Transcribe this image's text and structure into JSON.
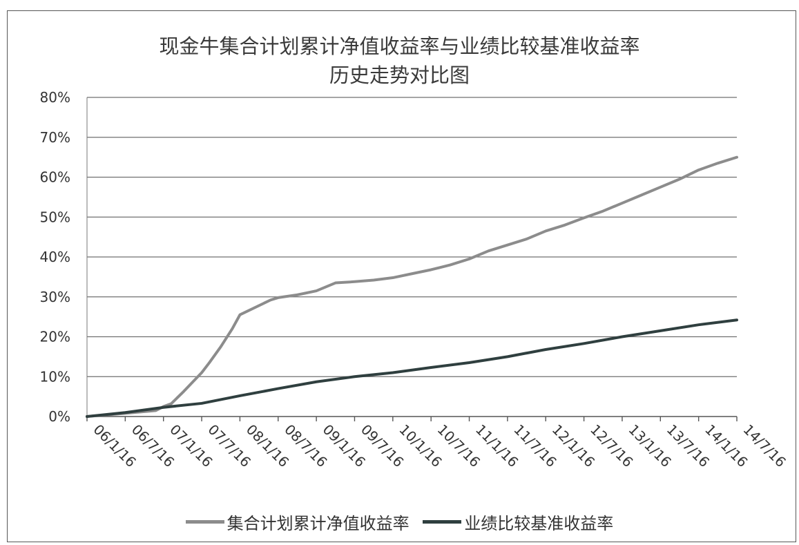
{
  "chart_data": {
    "type": "line",
    "title": "现金牛集合计划累计净值收益率与业绩比较基准收益率",
    "subtitle": "历史走势对比图",
    "xlabel": "",
    "ylabel": "",
    "categories": [
      "06/1/16",
      "06/7/16",
      "07/1/16",
      "07/7/16",
      "08/1/16",
      "08/7/16",
      "09/1/16",
      "09/7/16",
      "10/1/16",
      "10/7/16",
      "11/1/16",
      "11/7/16",
      "12/1/16",
      "12/7/16",
      "13/1/16",
      "13/7/16",
      "14/1/16",
      "14/7/16"
    ],
    "y_ticks": [
      "0%",
      "10%",
      "20%",
      "30%",
      "40%",
      "50%",
      "60%",
      "70%",
      "80%"
    ],
    "ylim": [
      0,
      80
    ],
    "grid": true,
    "legend_position": "bottom",
    "series": [
      {
        "name": "集合计划累计净值收益率",
        "color": "#8c8c8c",
        "x": [
          0,
          1,
          1.8,
          2,
          2.2,
          2.5,
          2.8,
          3,
          3.2,
          3.5,
          3.8,
          4,
          4.8,
          5,
          5.5,
          6,
          6.5,
          7,
          7.5,
          8,
          8.5,
          9,
          9.5,
          10,
          10.5,
          11,
          11.5,
          12,
          12.5,
          13,
          13.5,
          14,
          14.5,
          15,
          15.5,
          16,
          16.5,
          17
        ],
        "values": [
          0,
          0.8,
          1.5,
          2.5,
          3.2,
          6,
          9,
          11,
          13.5,
          17.5,
          22,
          25.5,
          29.2,
          29.8,
          30.5,
          31.5,
          33.5,
          33.8,
          34.2,
          34.8,
          35.8,
          36.8,
          38,
          39.5,
          41.5,
          43,
          44.5,
          46.5,
          48,
          49.8,
          51.5,
          53.5,
          55.5,
          57.5,
          59.5,
          61.8,
          63.5,
          65
        ]
      },
      {
        "name": "业绩比较基准收益率",
        "color": "#2f3f3f",
        "x": [
          0,
          1,
          2,
          3,
          4,
          5,
          6,
          7,
          8,
          9,
          10,
          11,
          12,
          13,
          14,
          15,
          16,
          17
        ],
        "values": [
          0,
          1,
          2.3,
          3.3,
          5.2,
          7,
          8.7,
          10,
          11,
          12.3,
          13.5,
          15,
          16.8,
          18.3,
          20,
          21.5,
          23,
          24.2
        ]
      }
    ]
  }
}
